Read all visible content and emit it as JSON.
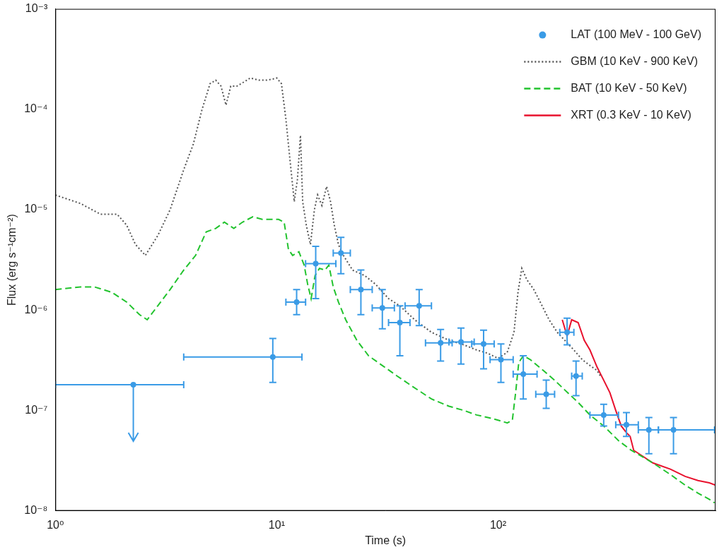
{
  "chart_data": {
    "type": "line",
    "x_label": "Time (s)",
    "y_label": "Flux (erg s⁻¹cm⁻²)",
    "log": true,
    "grid": false,
    "legend": "upper right",
    "xlim": [
      1,
      960
    ],
    "ylim": [
      1e-08,
      0.001
    ],
    "xticks": [
      {
        "value": 1,
        "label": "10⁰"
      },
      {
        "value": 10,
        "label": "10¹"
      },
      {
        "value": 100,
        "label": "10²"
      }
    ],
    "yticks": [
      {
        "value": 1e-08,
        "label": "10⁻⁸"
      },
      {
        "value": 1e-07,
        "label": "10⁻⁷"
      },
      {
        "value": 1e-06,
        "label": "10⁻⁶"
      },
      {
        "value": 1e-05,
        "label": "10⁻⁵"
      },
      {
        "value": 0.0001,
        "label": "10⁻⁴"
      },
      {
        "value": 0.001,
        "label": "10⁻³"
      }
    ],
    "series": [
      {
        "name": "LAT (100 MeV - 100 GeV)",
        "type": "scatter",
        "marker": "circle",
        "color": "#3a9be6",
        "x": [
          2.25,
          9.6,
          12.3,
          15.0,
          19.5,
          24,
          30,
          36,
          44,
          55,
          68,
          86,
          103,
          130,
          165,
          205,
          225,
          300,
          380,
          480,
          620
        ],
        "values": [
          1.8e-07,
          3.4e-07,
          1.2e-06,
          2.9e-06,
          3.7e-06,
          1.6e-06,
          1.05e-06,
          7.5e-07,
          1.1e-06,
          4.7e-07,
          4.8e-07,
          4.6e-07,
          3.2e-07,
          2.3e-07,
          1.45e-07,
          6e-07,
          2.2e-07,
          9e-08,
          7.2e-08,
          6.4e-08,
          6.4e-08
        ],
        "xerr": [
          [
            1.0,
            3.8
          ],
          [
            3.8,
            13.0
          ],
          [
            11.0,
            13.5
          ],
          [
            13.5,
            18.5
          ],
          [
            18.0,
            21.5
          ],
          [
            21.5,
            27
          ],
          [
            27,
            34
          ],
          [
            32,
            40
          ],
          [
            38,
            50
          ],
          [
            47,
            62
          ],
          [
            60,
            78
          ],
          [
            76,
            96
          ],
          [
            92,
            117
          ],
          [
            117,
            150
          ],
          [
            148,
            180
          ],
          [
            190,
            220
          ],
          [
            215,
            240
          ],
          [
            260,
            350
          ],
          [
            340,
            430
          ],
          [
            430,
            530
          ],
          [
            530,
            950
          ]
        ],
        "yerr": [
          null,
          [
            1.9e-07,
            5.2e-07
          ],
          [
            9e-07,
            1.6e-06
          ],
          [
            1.3e-06,
            4.3e-06
          ],
          [
            2.3e-06,
            5.3e-06
          ],
          [
            9e-07,
            2.5e-06
          ],
          [
            6.5e-07,
            1.6e-06
          ],
          [
            3.5e-07,
            1.1e-06
          ],
          [
            7e-07,
            1.6e-06
          ],
          [
            3.1e-07,
            6.4e-07
          ],
          [
            2.9e-07,
            6.6e-07
          ],
          [
            2.6e-07,
            6.3e-07
          ],
          [
            1.9e-07,
            4.6e-07
          ],
          [
            1.3e-07,
            3.5e-07
          ],
          [
            1.05e-07,
            2e-07
          ],
          [
            4.5e-07,
            8.3e-07
          ],
          [
            1.4e-07,
            3.1e-07
          ],
          [
            7e-08,
            1.15e-07
          ],
          [
            5.5e-08,
            9.5e-08
          ],
          [
            3.7e-08,
            8.5e-08
          ],
          [
            3.7e-08,
            8.5e-08
          ]
        ],
        "upper_limits": [
          true,
          false,
          false,
          false,
          false,
          false,
          false,
          false,
          false,
          false,
          false,
          false,
          false,
          false,
          false,
          false,
          false,
          false,
          false,
          false,
          false
        ]
      },
      {
        "name": "GBM (10 KeV - 900 KeV)",
        "type": "line",
        "line_style": "dotted",
        "color": "#555555",
        "x": [
          1,
          1.3,
          1.6,
          1.9,
          2.1,
          2.3,
          2.55,
          2.9,
          3.3,
          3.8,
          4.2,
          4.6,
          5.0,
          5.3,
          5.6,
          5.9,
          6.2,
          6.6,
          7.2,
          7.6,
          8.3,
          9.0,
          9.6,
          10.0,
          10.5,
          11.0,
          11.5,
          12.0,
          12.4,
          12.8,
          13.1,
          13.6,
          14.2,
          14.8,
          15.3,
          16.0,
          16.8,
          17.5,
          18.2,
          19.0,
          20,
          22,
          25,
          28,
          32,
          36,
          42,
          50,
          60,
          70,
          80,
          90,
          100,
          110,
          118,
          123,
          128,
          135,
          145,
          155,
          170,
          185,
          200,
          220,
          240,
          260,
          280,
          290
        ],
        "values": [
          1.4e-05,
          1.15e-05,
          9e-06,
          9e-06,
          7e-06,
          4.5e-06,
          3.5e-06,
          5.5e-06,
          1e-05,
          2.5e-05,
          4.5e-05,
          0.0001,
          0.00018,
          0.000195,
          0.00017,
          0.00011,
          0.00017,
          0.00017,
          0.00019,
          0.000205,
          0.000195,
          0.000195,
          0.0002,
          0.000205,
          0.00018,
          8e-05,
          3e-05,
          1.2e-05,
          2e-05,
          5.5e-05,
          1.2e-05,
          7e-06,
          4.5e-06,
          1e-05,
          1.4e-05,
          1.1e-05,
          1.7e-05,
          1.2e-05,
          7e-06,
          4.5e-06,
          3.5e-06,
          2.5e-06,
          2.2e-06,
          1.8e-06,
          1.3e-06,
          1.1e-06,
          8e-07,
          6e-07,
          5e-07,
          4.5e-07,
          4e-07,
          3.7e-07,
          3.3e-07,
          3.8e-07,
          6e-07,
          1.5e-06,
          2.6e-06,
          2e-06,
          1.6e-06,
          1.2e-06,
          8e-07,
          6e-07,
          5e-07,
          4e-07,
          3.2e-07,
          2.8e-07,
          2.5e-07,
          2.2e-07
        ]
      },
      {
        "name": "BAT (10 KeV - 50 KeV)",
        "type": "line",
        "line_style": "dashed",
        "color": "#22c32e",
        "x": [
          1,
          1.3,
          1.5,
          1.8,
          2.1,
          2.4,
          2.6,
          2.9,
          3.3,
          3.8,
          4.3,
          4.8,
          5.3,
          5.8,
          6.4,
          7.0,
          7.8,
          8.6,
          9.4,
          10.2,
          10.8,
          11.3,
          11.8,
          12.6,
          13.3,
          13.8,
          14.3,
          14.9,
          15.6,
          16.5,
          17.2,
          18,
          19,
          20.5,
          23,
          26,
          30,
          35,
          40,
          50,
          60,
          70,
          80,
          90,
          100,
          110,
          116,
          120,
          124,
          130,
          140,
          160,
          180,
          200,
          230,
          260,
          300,
          350,
          400,
          500,
          600,
          700,
          800,
          900,
          950
        ],
        "values": [
          1.6e-06,
          1.7e-06,
          1.7e-06,
          1.5e-06,
          1.2e-06,
          9e-07,
          8e-07,
          1.1e-06,
          1.6e-06,
          2.5e-06,
          3.5e-06,
          6e-06,
          6.5e-06,
          7.5e-06,
          6.5e-06,
          7.5e-06,
          8.5e-06,
          8e-06,
          8e-06,
          8e-06,
          7.5e-06,
          4e-06,
          3.5e-06,
          3.8e-06,
          2.8e-06,
          1.8e-06,
          1.3e-06,
          2.2e-06,
          2.6e-06,
          2.5e-06,
          2.8e-06,
          1.7e-06,
          1.2e-06,
          8e-07,
          5e-07,
          3.5e-07,
          2.8e-07,
          2.2e-07,
          1.8e-07,
          1.3e-07,
          1.1e-07,
          1e-07,
          9e-08,
          8.5e-08,
          8e-08,
          7.5e-08,
          8e-08,
          1.5e-07,
          3e-07,
          3.5e-07,
          3.2e-07,
          2.5e-07,
          2e-07,
          1.6e-07,
          1.2e-07,
          9e-08,
          7e-08,
          5e-08,
          4e-08,
          3e-08,
          2.3e-08,
          1.8e-08,
          1.5e-08,
          1.3e-08,
          1.2e-08
        ]
      },
      {
        "name": "XRT (0.3 KeV - 10 KeV)",
        "type": "line",
        "line_style": "solid",
        "color": "#e8112d",
        "x": [
          195,
          205,
          215,
          230,
          245,
          260,
          280,
          300,
          320,
          340,
          360,
          380,
          395,
          410,
          450,
          500,
          600,
          700,
          800,
          900,
          960
        ],
        "values": [
          8e-07,
          5.5e-07,
          8e-07,
          7.5e-07,
          5e-07,
          4e-07,
          2.7e-07,
          2e-07,
          1.5e-07,
          1e-07,
          7e-08,
          6e-08,
          5.5e-08,
          4e-08,
          3.5e-08,
          3e-08,
          2.6e-08,
          2.2e-08,
          2e-08,
          1.9e-08,
          1.8e-08
        ]
      }
    ]
  }
}
